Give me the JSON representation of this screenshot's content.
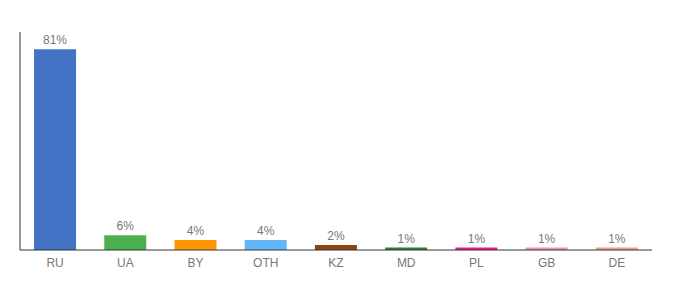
{
  "chart_data": {
    "type": "bar",
    "categories": [
      "RU",
      "UA",
      "BY",
      "OTH",
      "KZ",
      "MD",
      "PL",
      "GB",
      "DE"
    ],
    "values": [
      81,
      6,
      4,
      4,
      2,
      1,
      1,
      1,
      1
    ],
    "value_labels": [
      "81%",
      "6%",
      "4%",
      "4%",
      "2%",
      "1%",
      "1%",
      "1%",
      "1%"
    ],
    "colors": [
      "#4472c4",
      "#4caf50",
      "#ff9800",
      "#64b5f6",
      "#8b4513",
      "#2e7d32",
      "#e91e8c",
      "#f48fb1",
      "#e8a090"
    ],
    "ylim": [
      0,
      88
    ],
    "data_labels": true,
    "tick_labels": "x",
    "grid": false
  }
}
